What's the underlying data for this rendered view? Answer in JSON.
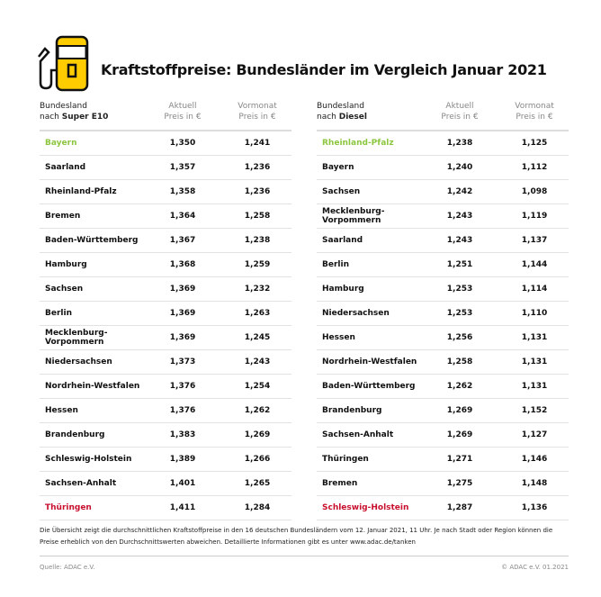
{
  "title": "Kraftstoffpreise: Bundesländer im Vergleich Januar 2021",
  "tables": [
    {
      "header": {
        "col1_line1": "Bundesland",
        "col1_prefix": "nach ",
        "col1_fuel": "Super E10",
        "col2_line1": "Aktuell",
        "col2_line2": "Preis in €",
        "col3_line1": "Vormonat",
        "col3_line2": "Preis in €"
      },
      "rows": [
        {
          "land": "Bayern",
          "aktuell": "1,350",
          "vormonat": "1,241"
        },
        {
          "land": "Saarland",
          "aktuell": "1,357",
          "vormonat": "1,236"
        },
        {
          "land": "Rheinland-Pfalz",
          "aktuell": "1,358",
          "vormonat": "1,236"
        },
        {
          "land": "Bremen",
          "aktuell": "1,364",
          "vormonat": "1,258"
        },
        {
          "land": "Baden-Württemberg",
          "aktuell": "1,367",
          "vormonat": "1,238"
        },
        {
          "land": "Hamburg",
          "aktuell": "1,368",
          "vormonat": "1,259"
        },
        {
          "land": "Sachsen",
          "aktuell": "1,369",
          "vormonat": "1,232"
        },
        {
          "land": "Berlin",
          "aktuell": "1,369",
          "vormonat": "1,263"
        },
        {
          "land": "Mecklenburg-Vorpommern",
          "aktuell": "1,369",
          "vormonat": "1,245"
        },
        {
          "land": "Niedersachsen",
          "aktuell": "1,373",
          "vormonat": "1,243"
        },
        {
          "land": "Nordrhein-Westfalen",
          "aktuell": "1,376",
          "vormonat": "1,254"
        },
        {
          "land": "Hessen",
          "aktuell": "1,376",
          "vormonat": "1,262"
        },
        {
          "land": "Brandenburg",
          "aktuell": "1,383",
          "vormonat": "1,269"
        },
        {
          "land": "Schleswig-Holstein",
          "aktuell": "1,389",
          "vormonat": "1,266"
        },
        {
          "land": "Sachsen-Anhalt",
          "aktuell": "1,401",
          "vormonat": "1,265"
        },
        {
          "land": "Thüringen",
          "aktuell": "1,411",
          "vormonat": "1,284"
        }
      ]
    },
    {
      "header": {
        "col1_line1": "Bundesland",
        "col1_prefix": "nach ",
        "col1_fuel": "Diesel",
        "col2_line1": "Aktuell",
        "col2_line2": "Preis in €",
        "col3_line1": "Vormonat",
        "col3_line2": "Preis in €"
      },
      "rows": [
        {
          "land": "Rheinland-Pfalz",
          "aktuell": "1,238",
          "vormonat": "1,125"
        },
        {
          "land": "Bayern",
          "aktuell": "1,240",
          "vormonat": "1,112"
        },
        {
          "land": "Sachsen",
          "aktuell": "1,242",
          "vormonat": "1,098"
        },
        {
          "land": "Mecklenburg-Vorpommern",
          "aktuell": "1,243",
          "vormonat": "1,119"
        },
        {
          "land": "Saarland",
          "aktuell": "1,243",
          "vormonat": "1,137"
        },
        {
          "land": "Berlin",
          "aktuell": "1,251",
          "vormonat": "1,144"
        },
        {
          "land": "Hamburg",
          "aktuell": "1,253",
          "vormonat": "1,114"
        },
        {
          "land": "Niedersachsen",
          "aktuell": "1,253",
          "vormonat": "1,110"
        },
        {
          "land": "Hessen",
          "aktuell": "1,256",
          "vormonat": "1,131"
        },
        {
          "land": "Nordrhein-Westfalen",
          "aktuell": "1,258",
          "vormonat": "1,131"
        },
        {
          "land": "Baden-Württemberg",
          "aktuell": "1,262",
          "vormonat": "1,131"
        },
        {
          "land": "Brandenburg",
          "aktuell": "1,269",
          "vormonat": "1,152"
        },
        {
          "land": "Sachsen-Anhalt",
          "aktuell": "1,269",
          "vormonat": "1,127"
        },
        {
          "land": "Thüringen",
          "aktuell": "1,271",
          "vormonat": "1,146"
        },
        {
          "land": "Bremen",
          "aktuell": "1,275",
          "vormonat": "1,148"
        },
        {
          "land": "Schleswig-Holstein",
          "aktuell": "1,287",
          "vormonat": "1,136"
        }
      ]
    }
  ],
  "note": "Die Übersicht zeigt die durchschnittlichen Kraftstoffpreise in den 16 deutschen Bundesländern vom 12. Januar 2021, 11 Uhr. Je nach Stadt oder Region können die Preise erheblich von den Durchschnittswerten abweichen. Detaillierte Informationen gibt es unter www.adac.de/tanken",
  "source": "Quelle: ADAC e.V.",
  "copyright": "© ADAC e.V. 01.2021",
  "colors": {
    "cheapest": "#8cc63f",
    "most_expensive": "#c8102e",
    "icon": "#ffcc00"
  }
}
